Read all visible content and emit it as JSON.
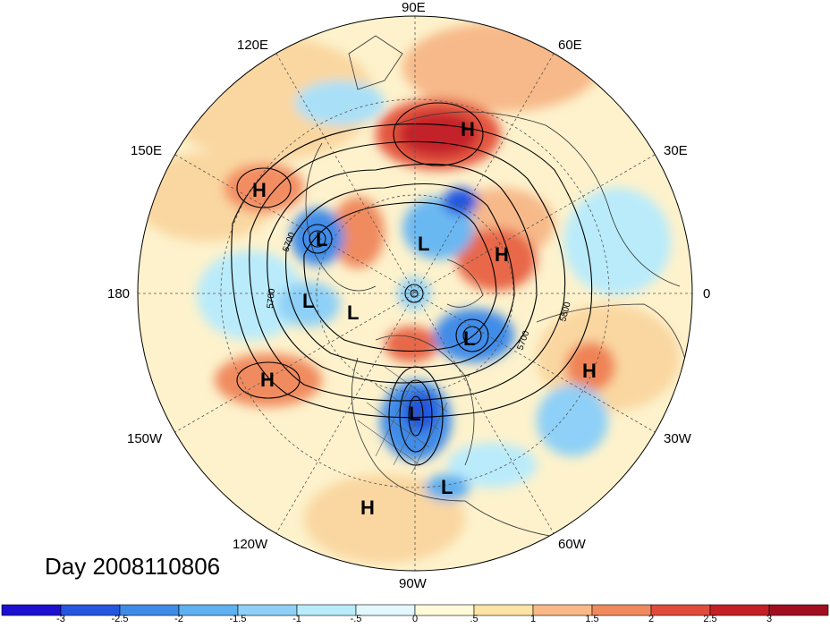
{
  "title": "Day 2008110806",
  "longitude_labels": {
    "n": "90E",
    "nne": "60E",
    "ene": "30E",
    "e": "0",
    "ese": "30W",
    "sse": "60W",
    "s": "90W",
    "ssw": "120W",
    "wsw": "150W",
    "w": "180",
    "wnw": "150E",
    "nnw": "120E"
  },
  "pressure_systems": [
    {
      "type": "H"
    },
    {
      "type": "H"
    },
    {
      "type": "H"
    },
    {
      "type": "H"
    },
    {
      "type": "H"
    },
    {
      "type": "H"
    },
    {
      "type": "L"
    },
    {
      "type": "L"
    },
    {
      "type": "L"
    },
    {
      "type": "L"
    },
    {
      "type": "L"
    },
    {
      "type": "L"
    },
    {
      "type": "L"
    }
  ],
  "contour_labels": [
    "5700",
    "5700",
    "5700",
    "5800"
  ],
  "colorbar": {
    "ticks": [
      "-3",
      "-2.5",
      "-2",
      "-1.5",
      "-1",
      "-.5",
      "0",
      ".5",
      "1",
      "1.5",
      "2",
      "2.5",
      "3"
    ],
    "colors": [
      "#1c0fd0",
      "#2456e0",
      "#3f8ce8",
      "#5fb0f0",
      "#8ed0f7",
      "#b8ecfb",
      "#e2f8fd",
      "#fffbd9",
      "#fde3a4",
      "#f9b886",
      "#f08a5c",
      "#e14b3c",
      "#c51f26",
      "#a10f1f"
    ]
  }
}
